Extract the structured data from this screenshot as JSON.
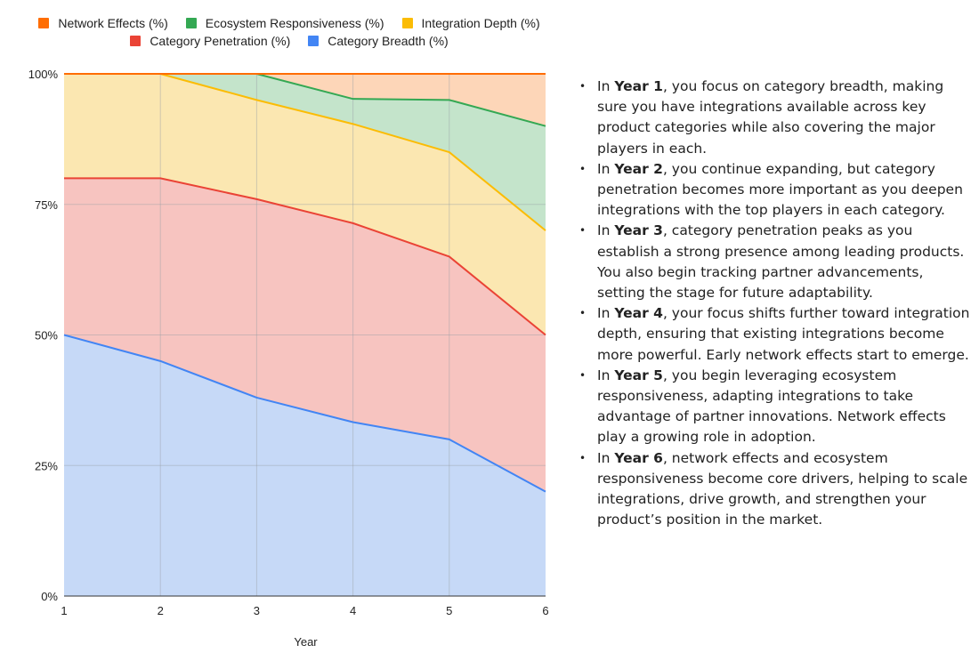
{
  "chart_data": {
    "type": "area",
    "stacked": true,
    "normalized": true,
    "xlabel": "Year",
    "ylabel": "",
    "x": [
      1,
      2,
      3,
      4,
      5,
      6
    ],
    "ylim": [
      0,
      100
    ],
    "y_ticks": [
      "0%",
      "25%",
      "50%",
      "75%",
      "100%"
    ],
    "grid": true,
    "legend_position": "top",
    "series": [
      {
        "name": "Category Breadth (%)",
        "color": "#4285f4",
        "fill": "#c6d9f7",
        "values": [
          50,
          45,
          38,
          33.3,
          30,
          20
        ]
      },
      {
        "name": "Category Penetration (%)",
        "color": "#ea4335",
        "fill": "#f7c4c0",
        "values": [
          30,
          35,
          38,
          38.1,
          35,
          30
        ]
      },
      {
        "name": "Integration Depth (%)",
        "color": "#fbbc04",
        "fill": "#fbe7b1",
        "values": [
          20,
          20,
          19,
          19,
          20,
          20
        ]
      },
      {
        "name": "Ecosystem Responsiveness (%)",
        "color": "#34a853",
        "fill": "#c4e4cb",
        "values": [
          0,
          0,
          5,
          4.8,
          10,
          20
        ]
      },
      {
        "name": "Network Effects (%)",
        "color": "#ff6d01",
        "fill": "#fdd6b8",
        "values": [
          0,
          0,
          0,
          4.8,
          5,
          10
        ]
      }
    ]
  },
  "legend": {
    "row1": [
      {
        "label": "Network Effects (%)",
        "color": "#ff6d01"
      },
      {
        "label": "Ecosystem Responsiveness (%)",
        "color": "#34a853"
      },
      {
        "label": "Integration Depth (%)",
        "color": "#fbbc04"
      }
    ],
    "row2": [
      {
        "label": "Category Penetration (%)",
        "color": "#ea4335"
      },
      {
        "label": "Category Breadth (%)",
        "color": "#4285f4"
      }
    ]
  },
  "notes": [
    {
      "pre": "In ",
      "bold": "Year 1",
      "post": ", you focus on category breadth, making sure you have integrations available across key product categories while also covering the major players in each."
    },
    {
      "pre": "In ",
      "bold": "Year 2",
      "post": ", you continue expanding, but category penetration becomes more important as you deepen integrations with the top players in each category."
    },
    {
      "pre": "In ",
      "bold": "Year 3",
      "post": ", category penetration peaks as you establish a strong presence among leading products. You also begin tracking partner advancements, setting the stage for future adaptability."
    },
    {
      "pre": "In ",
      "bold": "Year 4",
      "post": ", your focus shifts further toward integration depth, ensuring that existing integrations become more powerful. Early network effects start to emerge."
    },
    {
      "pre": "In ",
      "bold": "Year 5",
      "post": ", you begin leveraging ecosystem responsiveness, adapting integrations to take advantage of partner innovations. Network effects play a growing role in adoption."
    },
    {
      "pre": "In ",
      "bold": "Year 6",
      "post": ", network effects and ecosystem responsiveness become core drivers, helping to scale integrations, drive growth, and strengthen your product’s position in the market."
    }
  ]
}
